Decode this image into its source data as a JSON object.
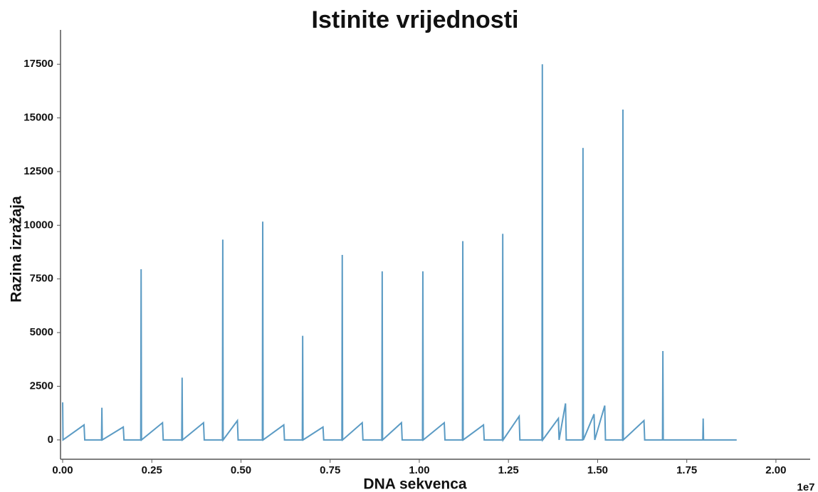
{
  "chart_data": {
    "type": "line",
    "title": "Istinite vrijednosti",
    "x_label": "DNA sekvenca",
    "y_label": "Razina izražaja",
    "x_offset_label": "1e7",
    "xlim": [
      -60000,
      20960000
    ],
    "ylim": [
      -900,
      19000
    ],
    "xticks": [
      {
        "value": 0,
        "label": "0.00"
      },
      {
        "value": 2500000,
        "label": "0.25"
      },
      {
        "value": 5000000,
        "label": "0.50"
      },
      {
        "value": 7500000,
        "label": "0.75"
      },
      {
        "value": 10000000,
        "label": "1.00"
      },
      {
        "value": 12500000,
        "label": "1.25"
      },
      {
        "value": 15000000,
        "label": "1.50"
      },
      {
        "value": 17500000,
        "label": "1.75"
      },
      {
        "value": 20000000,
        "label": "2.00"
      }
    ],
    "yticks": [
      0,
      2500,
      5000,
      7500,
      10000,
      12500,
      15000,
      17500
    ],
    "series": [
      {
        "name": "Istinite vrijednosti",
        "color": "#5b9bc4",
        "x": [
          0,
          10000,
          600000,
          620000,
          1090000,
          1100000,
          1110000,
          1700000,
          1720000,
          2190000,
          2200000,
          2210000,
          2800000,
          2820000,
          3340000,
          3350000,
          3360000,
          3950000,
          3970000,
          4480000,
          4490000,
          4500000,
          4900000,
          4920000,
          5600000,
          5610000,
          5620000,
          6200000,
          6220000,
          6720000,
          6730000,
          6740000,
          7300000,
          7320000,
          7830000,
          7840000,
          7850000,
          8400000,
          8420000,
          8950000,
          8960000,
          8970000,
          9500000,
          9520000,
          10090000,
          10100000,
          10110000,
          10700000,
          10720000,
          11210000,
          11220000,
          11230000,
          11800000,
          11820000,
          12330000,
          12340000,
          12350000,
          12800000,
          12820000,
          13440000,
          13450000,
          13460000,
          13900000,
          13920000,
          14100000,
          14120000,
          14580000,
          14590000,
          14600000,
          14900000,
          14920000,
          15200000,
          15220000,
          15700000,
          15710000,
          15720000,
          16300000,
          16320000,
          16820000,
          16830000,
          16840000,
          17950000,
          17960000,
          17970000,
          18900000
        ],
        "values": [
          1750,
          0,
          700,
          0,
          0,
          1500,
          0,
          600,
          0,
          0,
          7950,
          0,
          800,
          0,
          0,
          2900,
          0,
          800,
          0,
          0,
          9330,
          0,
          900,
          0,
          0,
          10170,
          0,
          700,
          0,
          0,
          4850,
          0,
          600,
          0,
          0,
          8620,
          0,
          800,
          0,
          0,
          7850,
          0,
          800,
          0,
          0,
          7850,
          0,
          800,
          0,
          0,
          9260,
          0,
          700,
          0,
          0,
          9600,
          0,
          1100,
          0,
          0,
          17500,
          0,
          1000,
          0,
          1700,
          0,
          0,
          13600,
          0,
          1200,
          0,
          1600,
          0,
          0,
          15390,
          0,
          900,
          0,
          0,
          4140,
          0,
          0,
          1000,
          0,
          0
        ]
      }
    ]
  }
}
